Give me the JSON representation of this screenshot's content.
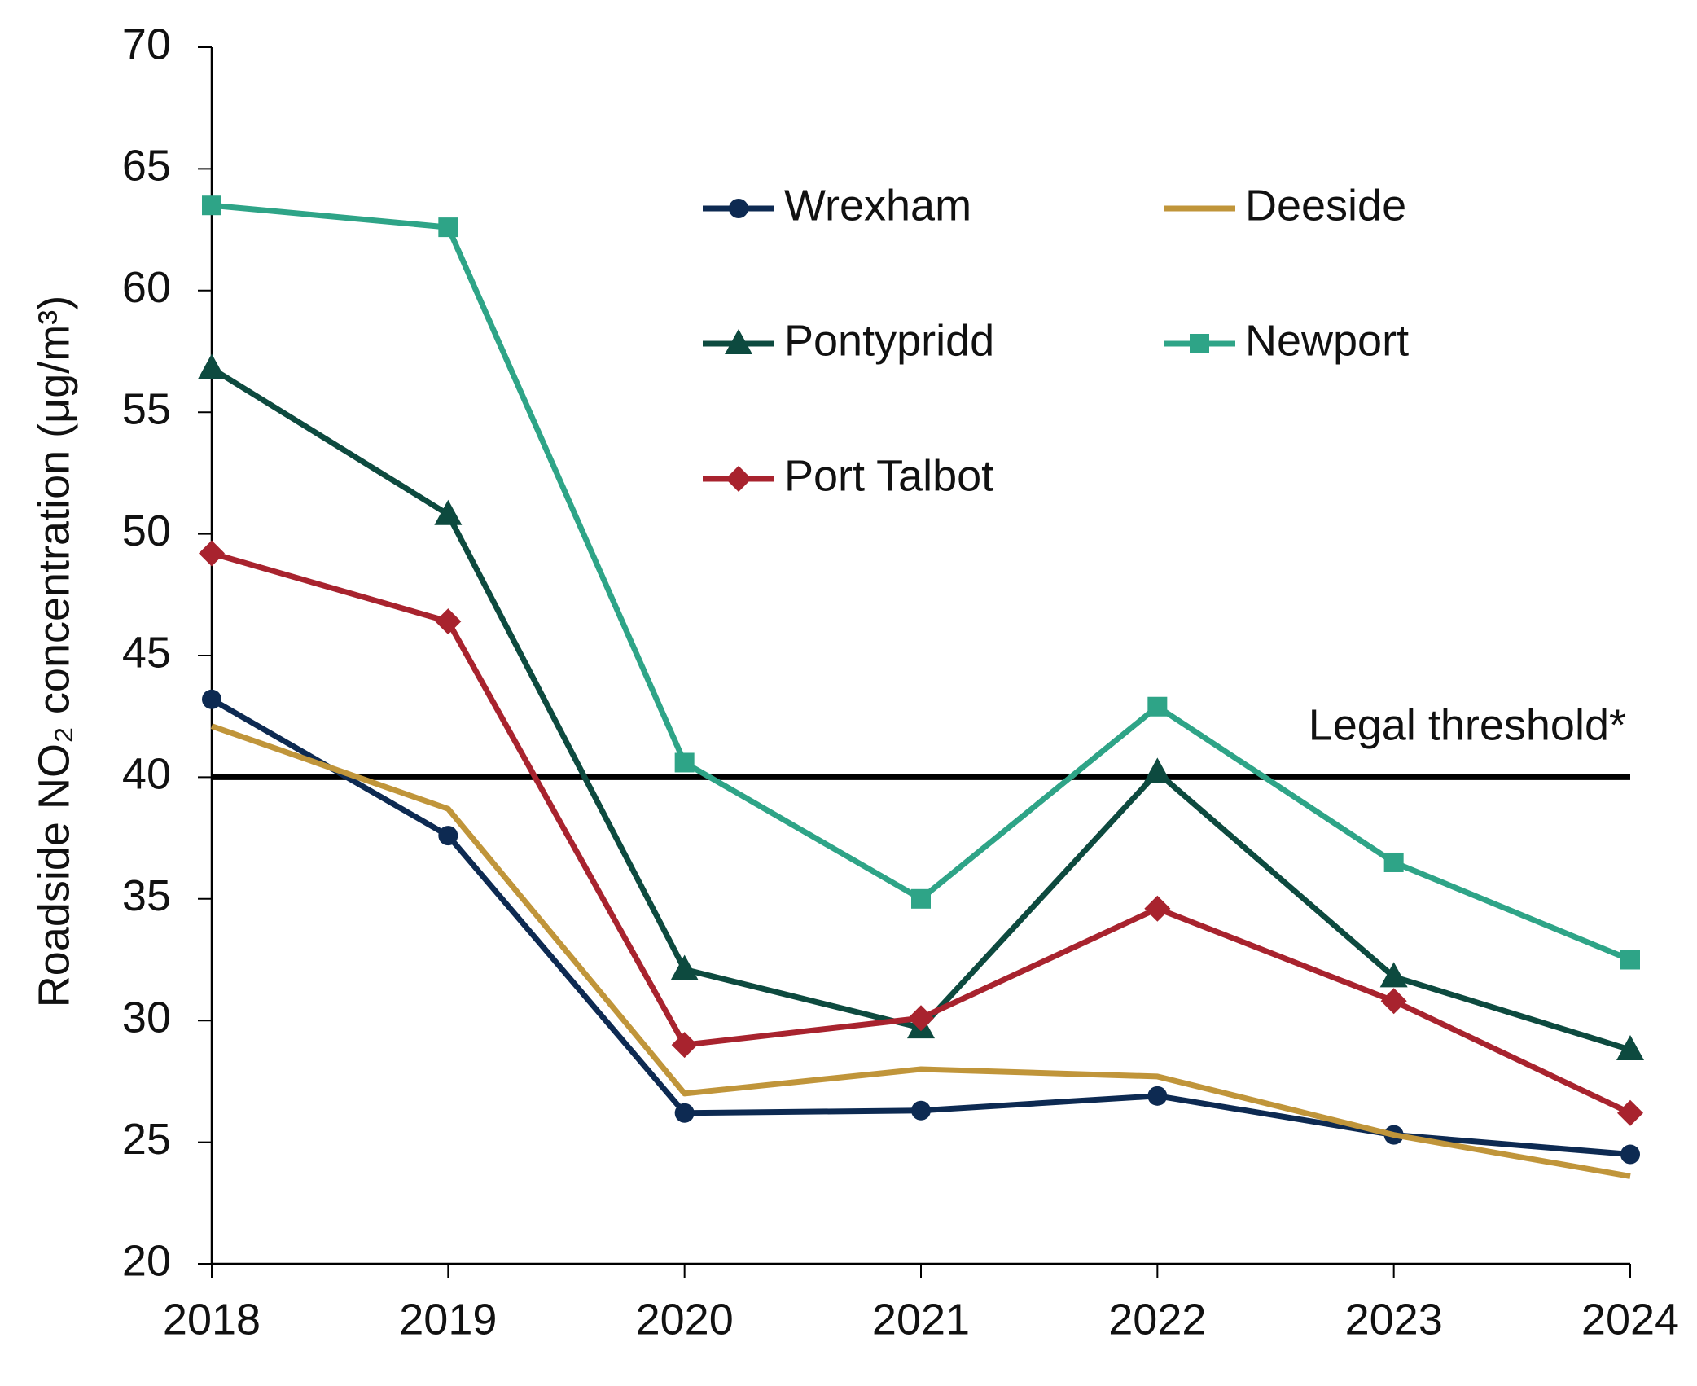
{
  "chart_data": {
    "type": "line",
    "y_label": "Roadside NO₂ concentration (μg/m³)",
    "x": [
      2018,
      2019,
      2020,
      2021,
      2022,
      2023,
      2024
    ],
    "xlim": [
      2018,
      2024
    ],
    "xticks": [
      2018,
      2019,
      2020,
      2021,
      2022,
      2023,
      2024
    ],
    "ylim": [
      20,
      70
    ],
    "yticks": [
      20,
      25,
      30,
      35,
      40,
      45,
      50,
      55,
      60,
      65,
      70
    ],
    "threshold": {
      "value": 40,
      "label": "Legal threshold*",
      "color": "#000000"
    },
    "series": [
      {
        "name": "Wrexham",
        "color": "#0d2a52",
        "marker": "circle",
        "values": [
          43.2,
          37.6,
          26.2,
          26.3,
          26.9,
          25.3,
          24.5
        ]
      },
      {
        "name": "Deeside",
        "color": "#c0953a",
        "marker": "none",
        "values": [
          42.1,
          38.7,
          27.0,
          28.0,
          27.7,
          25.3,
          23.6
        ]
      },
      {
        "name": "Pontypridd",
        "color": "#0d4a3f",
        "marker": "triangle",
        "values": [
          56.8,
          50.8,
          32.1,
          29.7,
          40.2,
          31.8,
          28.8
        ]
      },
      {
        "name": "Newport",
        "color": "#2ea487",
        "marker": "square",
        "values": [
          63.5,
          62.6,
          40.6,
          35.0,
          42.9,
          36.5,
          32.5
        ]
      },
      {
        "name": "Port Talbot",
        "color": "#a8232e",
        "marker": "diamond",
        "values": [
          49.2,
          46.4,
          29.0,
          30.1,
          34.6,
          30.8,
          26.2
        ]
      }
    ]
  }
}
